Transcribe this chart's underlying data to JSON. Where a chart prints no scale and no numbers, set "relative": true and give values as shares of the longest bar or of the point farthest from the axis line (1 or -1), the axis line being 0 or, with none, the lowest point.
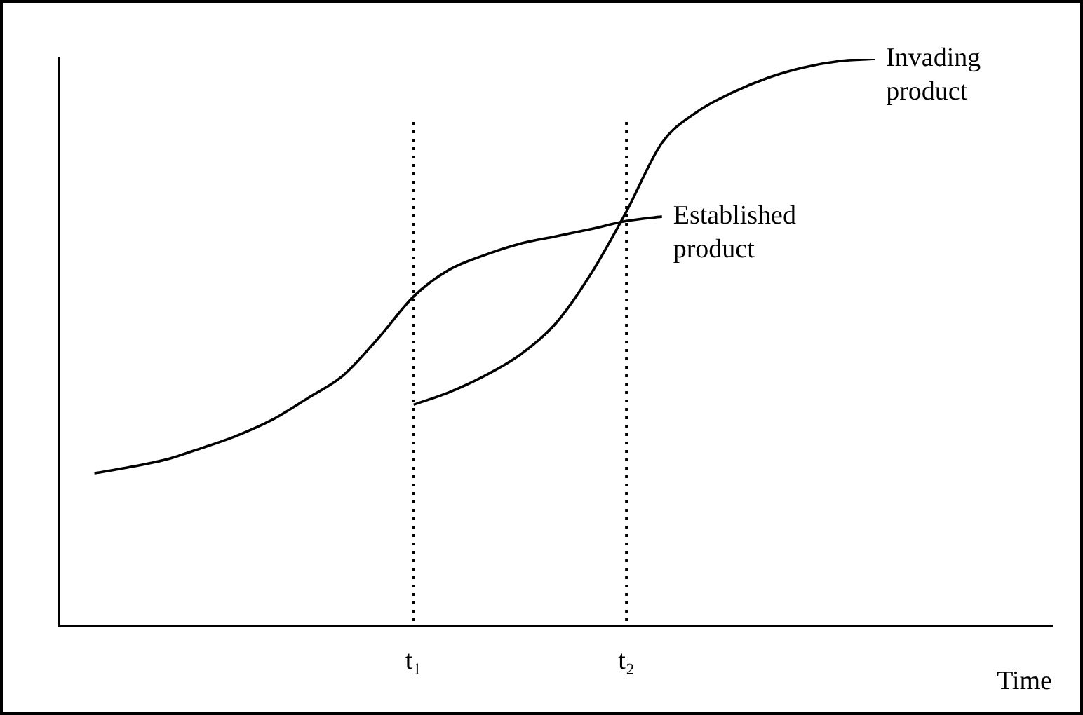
{
  "chart_data": {
    "type": "line",
    "relative": true,
    "xlabel": "Time",
    "categories": [
      null,
      null,
      null,
      null,
      null,
      null,
      null,
      null,
      null,
      null,
      "t₁",
      null,
      null,
      null,
      null,
      null,
      "t₂",
      null,
      null,
      null,
      null,
      null,
      null,
      null,
      null,
      null,
      null,
      null,
      null
    ],
    "series": [
      {
        "name": "Established product",
        "color": "#000000",
        "values": [
          null,
          0.269,
          0.28,
          0.293,
          0.313,
          0.335,
          0.363,
          0.401,
          0.441,
          0.507,
          0.581,
          0.628,
          0.654,
          0.674,
          0.687,
          0.7,
          0.714,
          0.722,
          null,
          null,
          null,
          null,
          null,
          null,
          null,
          null,
          null,
          null,
          null
        ]
      },
      {
        "name": "Invading product",
        "color": "#000000",
        "values": [
          null,
          null,
          null,
          null,
          null,
          null,
          null,
          null,
          null,
          null,
          0.39,
          0.412,
          0.441,
          0.478,
          0.533,
          0.621,
          0.731,
          0.852,
          0.907,
          0.941,
          0.967,
          0.985,
          0.996,
          1.0,
          null,
          null,
          null,
          null,
          null
        ]
      }
    ],
    "ref_lines": [
      {
        "axis": "x",
        "value": "t₁",
        "color": "#000000",
        "line_style": "dotted"
      },
      {
        "axis": "x",
        "value": "t₂",
        "color": "#000000",
        "line_style": "dotted"
      }
    ],
    "grid": false,
    "legend": false,
    "marker": "none",
    "line_style": "solid",
    "tick_labels": "x"
  }
}
